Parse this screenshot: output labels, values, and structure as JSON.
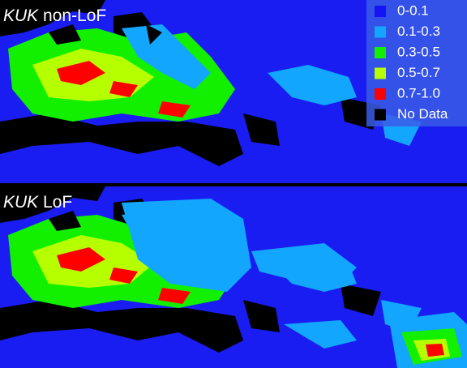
{
  "panels": [
    {
      "gene": "KUK",
      "variant": "non-LoF"
    },
    {
      "gene": "KUK",
      "variant": "LoF"
    }
  ],
  "legend": [
    {
      "label": "0-0.1",
      "color": "#1414f5"
    },
    {
      "label": "0.1-0.3",
      "color": "#12a6ff"
    },
    {
      "label": "0.3-0.5",
      "color": "#12f000"
    },
    {
      "label": "0.5-0.7",
      "color": "#b6ff00"
    },
    {
      "label": "0.7-1.0",
      "color": "#ff0000"
    },
    {
      "label": "No Data",
      "color": "#000000"
    }
  ]
}
